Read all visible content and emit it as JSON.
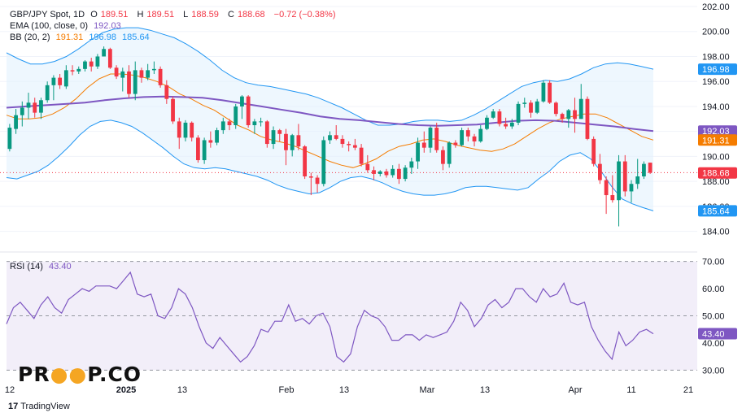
{
  "header": {
    "symbol": "GBP/JPY Spot, 1D",
    "open_label": "O",
    "open": "189.51",
    "high_label": "H",
    "high": "189.51",
    "low_label": "L",
    "low": "188.59",
    "close_label": "C",
    "close": "188.68",
    "change": "−0.72 (−0.38%)"
  },
  "ema": {
    "label": "EMA (100, close, 0)",
    "value": "192.03"
  },
  "bb": {
    "label": "BB (20, 2)",
    "basis": "191.31",
    "upper": "196.98",
    "lower": "185.64"
  },
  "rsi": {
    "label": "RSI (14)",
    "value": "43.40"
  },
  "branding": {
    "logo_left": "PR",
    "logo_right": "P.CO",
    "tradingview": "TradingView"
  },
  "colors": {
    "up": "#089981",
    "down": "#f23645",
    "ema": "#7e57c2",
    "bb_basis": "#f57c00",
    "bb_band": "#2196f3",
    "rsi_line": "#7e57c2",
    "bb_fill": "#e3f2fd",
    "rsi_fill": "#ede7f6"
  },
  "chart_data": [
    {
      "type": "candlestick",
      "title": "GBP/JPY Spot, 1D",
      "ylim": [
        183,
        202
      ],
      "y_ticks": [
        "202.00",
        "200.00",
        "198.00",
        "196.00",
        "194.00",
        "192.00",
        "190.00",
        "188.00",
        "186.00",
        "184.00"
      ],
      "x_tick_labels": [
        "12",
        "2025",
        "13",
        "Feb",
        "13",
        "Mar",
        "13",
        "Apr",
        "11",
        "21"
      ],
      "price_labels": {
        "bb_upper": "196.98",
        "ema": "192.03",
        "bb_basis": "191.31",
        "last": "188.68",
        "bb_lower": "185.64"
      },
      "candles": [
        [
          190.6,
          192.6,
          190.4,
          192.3
        ],
        [
          192.2,
          193.8,
          191.8,
          193.3
        ],
        [
          193.3,
          194.4,
          192.4,
          193.9
        ],
        [
          193.9,
          195.1,
          193.0,
          194.3
        ],
        [
          194.3,
          194.7,
          193.1,
          193.5
        ],
        [
          193.5,
          194.7,
          193.0,
          194.5
        ],
        [
          194.5,
          196.0,
          194.3,
          195.7
        ],
        [
          195.7,
          196.5,
          194.5,
          196.3
        ],
        [
          196.3,
          196.6,
          195.4,
          195.7
        ],
        [
          195.6,
          197.3,
          195.4,
          196.9
        ],
        [
          196.9,
          197.3,
          196.5,
          196.8
        ],
        [
          196.8,
          197.2,
          196.6,
          197.0
        ],
        [
          197.0,
          197.7,
          196.8,
          197.6
        ],
        [
          197.6,
          197.9,
          196.8,
          197.2
        ],
        [
          197.2,
          198.2,
          197.0,
          198.0
        ],
        [
          198.0,
          198.8,
          198.0,
          198.6
        ],
        [
          198.6,
          198.7,
          197.0,
          197.1
        ],
        [
          197.1,
          197.3,
          196.2,
          196.4
        ],
        [
          196.3,
          197.1,
          195.2,
          196.8
        ],
        [
          196.8,
          197.3,
          194.7,
          195.0
        ],
        [
          195.0,
          197.6,
          194.5,
          196.9
        ],
        [
          196.9,
          197.1,
          195.9,
          196.3
        ],
        [
          196.3,
          197.4,
          196.1,
          196.9
        ],
        [
          196.9,
          197.6,
          196.6,
          197.0
        ],
        [
          197.0,
          197.2,
          195.5,
          195.7
        ],
        [
          195.7,
          196.1,
          194.2,
          194.6
        ],
        [
          194.6,
          194.8,
          192.6,
          192.8
        ],
        [
          192.8,
          193.1,
          190.6,
          191.5
        ],
        [
          191.5,
          192.9,
          191.2,
          192.7
        ],
        [
          192.7,
          192.8,
          191.2,
          191.5
        ],
        [
          191.5,
          191.7,
          189.5,
          189.7
        ],
        [
          189.7,
          191.5,
          189.4,
          191.3
        ],
        [
          191.3,
          192.0,
          190.7,
          191.1
        ],
        [
          191.1,
          192.3,
          190.9,
          192.1
        ],
        [
          192.1,
          193.1,
          191.8,
          192.8
        ],
        [
          192.8,
          193.0,
          192.1,
          192.5
        ],
        [
          192.5,
          194.2,
          192.2,
          194.0
        ],
        [
          194.0,
          194.9,
          193.0,
          194.8
        ],
        [
          194.8,
          194.9,
          192.3,
          192.5
        ],
        [
          192.5,
          193.0,
          191.8,
          192.8
        ],
        [
          192.8,
          193.1,
          192.4,
          192.8
        ],
        [
          192.8,
          192.9,
          190.7,
          191.0
        ],
        [
          191.0,
          192.4,
          190.6,
          192.1
        ],
        [
          192.1,
          192.2,
          191.2,
          191.8
        ],
        [
          191.8,
          192.2,
          189.3,
          190.5
        ],
        [
          190.5,
          191.8,
          190.0,
          191.7
        ],
        [
          191.7,
          192.6,
          190.5,
          190.8
        ],
        [
          190.8,
          190.9,
          188.2,
          188.4
        ],
        [
          188.4,
          188.7,
          186.9,
          188.3
        ],
        [
          188.3,
          188.5,
          187.1,
          187.8
        ],
        [
          187.8,
          191.6,
          187.6,
          191.3
        ],
        [
          191.3,
          192.0,
          191.0,
          191.7
        ],
        [
          191.7,
          192.5,
          191.3,
          191.4
        ],
        [
          191.4,
          191.7,
          190.7,
          191.0
        ],
        [
          191.0,
          191.2,
          190.4,
          190.9
        ],
        [
          190.9,
          191.4,
          190.5,
          190.7
        ],
        [
          190.7,
          191.0,
          189.2,
          189.4
        ],
        [
          189.4,
          190.1,
          188.7,
          188.9
        ],
        [
          188.9,
          189.2,
          188.1,
          188.6
        ],
        [
          188.6,
          188.9,
          188.4,
          188.8
        ],
        [
          188.8,
          189.0,
          188.3,
          188.5
        ],
        [
          188.5,
          189.3,
          188.3,
          189.0
        ],
        [
          189.0,
          189.4,
          187.8,
          188.2
        ],
        [
          188.2,
          189.3,
          188.0,
          189.1
        ],
        [
          189.1,
          189.9,
          188.6,
          189.6
        ],
        [
          189.6,
          191.5,
          189.0,
          191.1
        ],
        [
          191.1,
          192.0,
          190.3,
          190.7
        ],
        [
          190.7,
          192.4,
          190.3,
          192.3
        ],
        [
          192.3,
          192.7,
          190.3,
          190.5
        ],
        [
          190.5,
          190.8,
          188.9,
          189.4
        ],
        [
          189.4,
          191.2,
          189.1,
          191.1
        ],
        [
          191.1,
          191.3,
          190.7,
          190.9
        ],
        [
          190.9,
          192.3,
          190.8,
          192.1
        ],
        [
          192.1,
          192.3,
          191.2,
          191.6
        ],
        [
          191.6,
          191.8,
          190.8,
          191.2
        ],
        [
          191.2,
          192.5,
          191.1,
          192.2
        ],
        [
          192.2,
          193.3,
          192.1,
          193.1
        ],
        [
          193.1,
          193.8,
          193.0,
          193.6
        ],
        [
          193.6,
          193.8,
          192.4,
          192.6
        ],
        [
          192.6,
          193.1,
          192.2,
          192.4
        ],
        [
          192.4,
          193.0,
          192.2,
          192.7
        ],
        [
          192.7,
          194.4,
          192.5,
          194.2
        ],
        [
          194.2,
          194.7,
          193.9,
          194.3
        ],
        [
          194.3,
          194.5,
          193.1,
          193.5
        ],
        [
          193.5,
          194.6,
          193.4,
          194.4
        ],
        [
          194.4,
          196.1,
          194.3,
          195.9
        ],
        [
          195.9,
          196.1,
          194.2,
          194.3
        ],
        [
          194.3,
          194.4,
          193.2,
          193.4
        ],
        [
          193.4,
          193.5,
          192.7,
          193.0
        ],
        [
          193.0,
          193.8,
          192.3,
          193.7
        ],
        [
          193.7,
          194.7,
          191.9,
          193.0
        ],
        [
          193.0,
          195.8,
          193.0,
          194.6
        ],
        [
          194.6,
          194.8,
          191.3,
          191.4
        ],
        [
          191.4,
          191.6,
          189.2,
          189.4
        ],
        [
          189.4,
          190.2,
          187.8,
          188.1
        ],
        [
          188.1,
          188.4,
          185.4,
          186.9
        ],
        [
          186.9,
          188.5,
          186.3,
          186.5
        ],
        [
          186.5,
          190.1,
          184.4,
          189.6
        ],
        [
          189.6,
          190.1,
          186.8,
          187.2
        ],
        [
          187.2,
          188.1,
          186.3,
          187.8
        ],
        [
          187.8,
          189.8,
          187.4,
          188.4
        ],
        [
          188.4,
          189.6,
          188.2,
          189.4
        ],
        [
          189.5,
          189.5,
          188.6,
          188.7
        ]
      ],
      "ema100": [
        193.9,
        194.0,
        194.1,
        194.2,
        194.3,
        194.5,
        194.65,
        194.75,
        194.8,
        194.75,
        194.7,
        194.5,
        194.25,
        194.0,
        193.75,
        193.5,
        193.2,
        193.0,
        192.9,
        192.75,
        192.6,
        192.5,
        192.45,
        192.5,
        192.55,
        192.7,
        192.85,
        192.9,
        192.85,
        192.7,
        192.55,
        192.4,
        192.2,
        192.03
      ],
      "bb_basis": [
        193.3,
        193.0,
        193.0,
        193.1,
        193.4,
        193.9,
        194.6,
        195.5,
        196.2,
        196.6,
        196.6,
        196.5,
        196.3,
        196.0,
        195.6,
        195.0,
        194.6,
        194.1,
        193.7,
        193.1,
        192.5,
        192.1,
        191.6,
        191.3,
        191.1,
        190.8,
        190.4,
        190.0,
        189.6,
        189.3,
        189.1,
        189.4,
        189.8,
        190.4,
        190.8,
        191.0,
        191.3,
        191.4,
        191.2,
        190.9,
        190.7,
        190.5,
        190.4,
        190.6,
        191.0,
        191.6,
        192.2,
        192.7,
        193.0,
        193.2,
        193.4,
        193.4,
        193.1,
        192.6,
        192.1,
        191.6,
        191.31
      ],
      "bb_upper": [
        198.3,
        197.8,
        197.4,
        197.4,
        197.6,
        198.0,
        198.6,
        199.3,
        199.9,
        200.2,
        200.3,
        200.3,
        200.1,
        199.8,
        199.5,
        199.0,
        198.4,
        197.7,
        196.9,
        196.3,
        195.9,
        195.7,
        195.6,
        195.4,
        195.2,
        195.0,
        194.7,
        194.3,
        193.9,
        193.4,
        192.9,
        192.5,
        192.5,
        192.6,
        192.8,
        192.9,
        192.9,
        192.8,
        192.9,
        193.3,
        193.8,
        194.4,
        195.0,
        195.6,
        195.9,
        196.1,
        196.0,
        196.2,
        196.6,
        197.1,
        197.4,
        197.5,
        197.4,
        197.2,
        196.98
      ],
      "bb_lower": [
        188.3,
        188.2,
        188.5,
        188.8,
        189.3,
        190.0,
        190.8,
        191.7,
        192.4,
        192.8,
        192.9,
        192.7,
        192.4,
        191.9,
        191.3,
        190.7,
        190.0,
        189.4,
        189.1,
        189.0,
        189.1,
        189.0,
        188.8,
        188.6,
        188.4,
        188.1,
        187.7,
        187.4,
        187.2,
        187.0,
        187.1,
        187.5,
        188.0,
        188.3,
        188.4,
        188.2,
        187.9,
        187.5,
        187.2,
        187.0,
        186.9,
        186.9,
        187.0,
        187.2,
        187.5,
        187.6,
        187.6,
        187.5,
        187.4,
        187.3,
        187.5,
        188.2,
        188.8,
        189.6,
        190.1,
        190.3,
        189.8,
        188.8,
        187.6,
        186.6,
        186.2,
        185.9,
        185.64
      ]
    },
    {
      "type": "line",
      "title": "RSI (14)",
      "ylim": [
        28,
        72
      ],
      "y_ticks": [
        "70.00",
        "60.00",
        "50.00",
        "40.00",
        "30.00"
      ],
      "band": [
        30,
        70
      ],
      "midline": 50,
      "last_label": "43.40",
      "series": [
        {
          "values": [
            47,
            53,
            55,
            52,
            49,
            54,
            57,
            53,
            51,
            56,
            58,
            60,
            59,
            61,
            61,
            61,
            60,
            63,
            66,
            58,
            57,
            58,
            50,
            49,
            53,
            60,
            58,
            53,
            46,
            40,
            38,
            42,
            39,
            36,
            33,
            35,
            39,
            45,
            44,
            48,
            48,
            54,
            48,
            49,
            47,
            50,
            51,
            46,
            35,
            33,
            36,
            46,
            52,
            50,
            49,
            46,
            41,
            41,
            43,
            43,
            41,
            43,
            42,
            43,
            44,
            48,
            55,
            52,
            46,
            49,
            54,
            56,
            53,
            55,
            60,
            60,
            57,
            55,
            60,
            57,
            58,
            62,
            55,
            54,
            55,
            46,
            41,
            37,
            34,
            44,
            39,
            41,
            44,
            45,
            43.4
          ]
        }
      ]
    }
  ]
}
